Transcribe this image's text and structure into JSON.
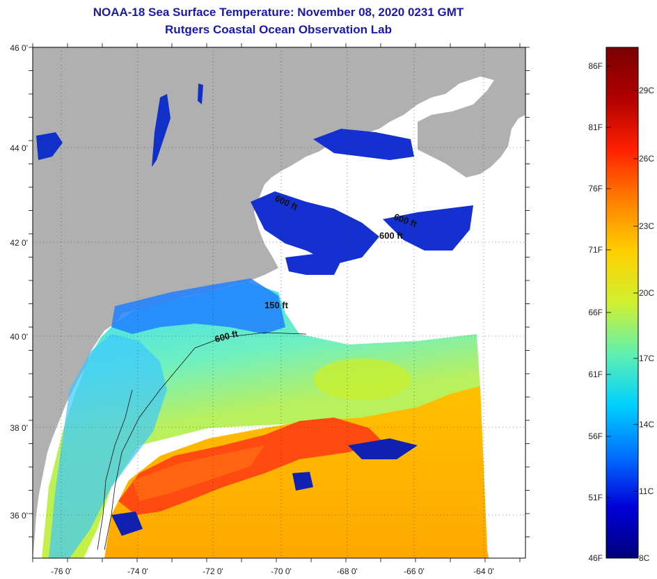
{
  "header": {
    "title": "NOAA-18 Sea Surface Temperature:  November 08, 2020 0231 GMT",
    "subtitle": "Rutgers Coastal Ocean Observation Lab"
  },
  "map": {
    "lat_labels": [
      "46 0'",
      "44 0'",
      "42 0'",
      "40 0'",
      "38 0'",
      "36 0'"
    ],
    "lon_labels": [
      "-76 0'",
      "-74 0'",
      "-72 0'",
      "-70 0'",
      "-68 0'",
      "-66 0'",
      "-64 0'"
    ],
    "contour_labels": [
      "600 ft",
      "600 ft",
      "600 ft",
      "150 ft",
      "600 ft"
    ]
  },
  "colorbar": {
    "fahrenheit": [
      "86F",
      "81F",
      "76F",
      "71F",
      "66F",
      "61F",
      "56F",
      "51F",
      "46F"
    ],
    "celsius": [
      "29C",
      "26C",
      "23C",
      "20C",
      "17C",
      "14C",
      "11C",
      "8C"
    ],
    "colors": [
      "#00007a",
      "#0000d8",
      "#0070ff",
      "#00d0ff",
      "#60f0b0",
      "#d0f030",
      "#ffd000",
      "#ff8000",
      "#ff2000",
      "#b00000",
      "#7a0000"
    ]
  }
}
